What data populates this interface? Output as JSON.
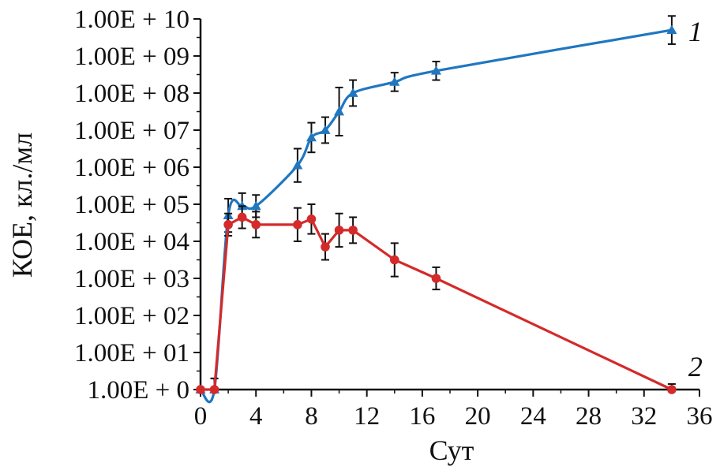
{
  "chart_data": {
    "type": "line",
    "xlabel": "Сут",
    "ylabel": "КОЕ, кл./мл",
    "xlim": [
      0,
      36
    ],
    "ylim": [
      0,
      10
    ],
    "y_scale": "log10",
    "x_ticks": [
      "0",
      "4",
      "8",
      "12",
      "16",
      "20",
      "24",
      "28",
      "32",
      "36"
    ],
    "y_ticks": [
      "1.00E + 0",
      "1.00E + 01",
      "1.00E + 02",
      "1.00E + 03",
      "1.00E + 04",
      "1.00E + 05",
      "1.00E + 06",
      "1.00E + 07",
      "1.00E + 08",
      "1.00E + 09",
      "1.00E + 10"
    ],
    "grid": false,
    "series": [
      {
        "name": "1",
        "color": "#1f77c0",
        "marker": "triangle",
        "x": [
          0,
          1,
          2,
          3,
          4,
          7,
          8,
          9,
          10,
          11,
          14,
          17,
          34
        ],
        "log10": [
          0,
          0,
          4.7,
          4.95,
          4.95,
          6.05,
          6.8,
          7.0,
          7.5,
          8.0,
          8.3,
          8.6,
          9.7
        ],
        "error": [
          0,
          0.3,
          0.45,
          0.35,
          0.3,
          0.45,
          0.4,
          0.35,
          0.65,
          0.35,
          0.25,
          0.25,
          0.38
        ]
      },
      {
        "name": "2",
        "color": "#d42a2a",
        "marker": "circle",
        "x": [
          0,
          1,
          2,
          3,
          4,
          7,
          8,
          9,
          10,
          11,
          14,
          17,
          34
        ],
        "log10": [
          0,
          0,
          4.45,
          4.65,
          4.45,
          4.45,
          4.6,
          3.85,
          4.3,
          4.3,
          3.5,
          3.0,
          0
        ],
        "error": [
          0,
          0.3,
          0.3,
          0.3,
          0.35,
          0.45,
          0.4,
          0.35,
          0.45,
          0.35,
          0.45,
          0.3,
          0.15
        ]
      }
    ]
  }
}
